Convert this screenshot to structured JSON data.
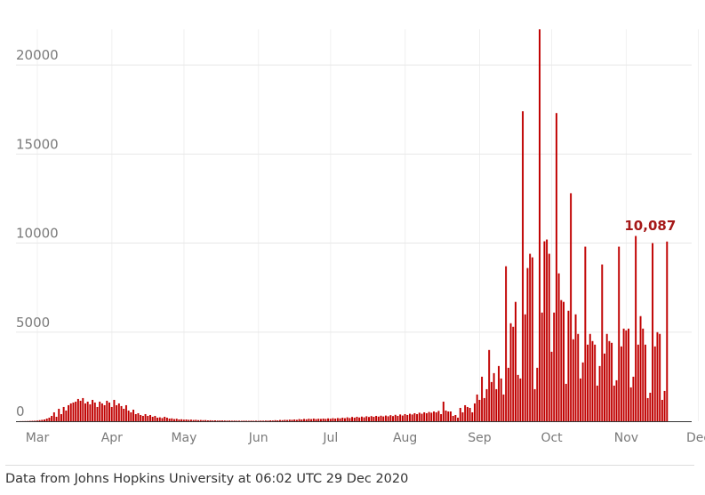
{
  "chart_data": {
    "type": "bar",
    "title": "",
    "xlabel": "",
    "ylabel": "",
    "ylim": [
      0,
      22000
    ],
    "yticks": [
      0,
      5000,
      10000,
      15000,
      20000
    ],
    "grid": "horizontal",
    "months": [
      "Mar",
      "Apr",
      "May",
      "Jun",
      "Jul",
      "Aug",
      "Sep",
      "Oct",
      "Nov",
      "Dec"
    ],
    "start_date": "2020-03-01",
    "bar_color": "#c00000",
    "callout": {
      "label": "10,087",
      "value": 10087
    },
    "values": [
      5,
      8,
      10,
      12,
      20,
      25,
      30,
      40,
      60,
      80,
      100,
      150,
      200,
      300,
      500,
      250,
      700,
      400,
      800,
      600,
      900,
      1000,
      1050,
      1100,
      1250,
      1150,
      1300,
      1000,
      1100,
      950,
      1200,
      1050,
      800,
      1100,
      1000,
      900,
      1150,
      1050,
      800,
      1200,
      900,
      1000,
      850,
      700,
      900,
      600,
      500,
      650,
      400,
      450,
      350,
      300,
      400,
      300,
      350,
      250,
      300,
      200,
      220,
      180,
      250,
      200,
      150,
      160,
      120,
      140,
      100,
      110,
      90,
      100,
      80,
      90,
      70,
      80,
      60,
      70,
      60,
      65,
      50,
      55,
      45,
      50,
      40,
      45,
      45,
      40,
      35,
      40,
      30,
      35,
      30,
      30,
      25,
      30,
      28,
      25,
      30,
      25,
      30,
      25,
      35,
      30,
      40,
      35,
      50,
      40,
      60,
      50,
      70,
      60,
      80,
      70,
      90,
      80,
      100,
      80,
      120,
      100,
      130,
      110,
      140,
      120,
      150,
      120,
      140,
      130,
      150,
      130,
      160,
      140,
      170,
      150,
      180,
      160,
      200,
      170,
      220,
      180,
      240,
      200,
      250,
      210,
      260,
      220,
      280,
      240,
      290,
      250,
      300,
      260,
      310,
      270,
      320,
      280,
      340,
      290,
      360,
      300,
      380,
      320,
      400,
      350,
      420,
      380,
      450,
      400,
      480,
      420,
      500,
      450,
      520,
      480,
      550,
      500,
      580,
      400,
      1100,
      600,
      550,
      550,
      300,
      350,
      200,
      750,
      500,
      900,
      800,
      750,
      500,
      1000,
      1500,
      1200,
      2500,
      1300,
      1800,
      4000,
      2200,
      2700,
      1800,
      3100,
      2400,
      1500,
      8700,
      3000,
      5500,
      5300,
      6700,
      2600,
      2400,
      17400,
      6000,
      8600,
      9400,
      9200,
      1800,
      3000,
      22000,
      6100,
      10100,
      10200,
      9400,
      3900,
      6100,
      17300,
      8300,
      6800,
      6700,
      2100,
      6200,
      12800,
      4600,
      6000,
      4900,
      2400,
      3300,
      9800,
      4300,
      4900,
      4500,
      4300,
      2000,
      3100,
      8800,
      3800,
      4900,
      4500,
      4400,
      2000,
      2300,
      9800,
      4200,
      5200,
      5100,
      5200,
      1900,
      2500,
      10400,
      4300,
      5900,
      5200,
      4300,
      1300,
      1600,
      10000,
      4200,
      5000,
      4900,
      1200,
      1700,
      10087
    ]
  },
  "source": "Data from Johns Hopkins University at 06:02 UTC 29 Dec 2020"
}
